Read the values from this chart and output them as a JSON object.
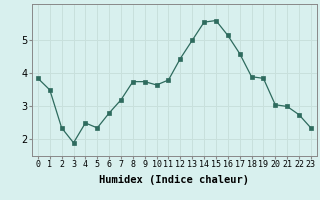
{
  "x": [
    0,
    1,
    2,
    3,
    4,
    5,
    6,
    7,
    8,
    9,
    10,
    11,
    12,
    13,
    14,
    15,
    16,
    17,
    18,
    19,
    20,
    21,
    22,
    23
  ],
  "y": [
    3.85,
    3.5,
    2.35,
    1.9,
    2.5,
    2.35,
    2.8,
    3.2,
    3.75,
    3.75,
    3.65,
    3.8,
    4.45,
    5.0,
    5.55,
    5.6,
    5.15,
    4.6,
    3.9,
    3.85,
    3.05,
    3.0,
    2.75,
    2.35
  ],
  "line_color": "#2e6b5e",
  "marker": "s",
  "marker_size": 2.5,
  "xlabel": "Humidex (Indice chaleur)",
  "xlabel_fontsize": 7.5,
  "background_color": "#d8f0ee",
  "grid_color": "#c8e0dc",
  "ylim": [
    1.5,
    6.1
  ],
  "xlim": [
    -0.5,
    23.5
  ],
  "yticks": [
    2,
    3,
    4,
    5
  ],
  "xticks": [
    0,
    1,
    2,
    3,
    4,
    5,
    6,
    7,
    8,
    9,
    10,
    11,
    12,
    13,
    14,
    15,
    16,
    17,
    18,
    19,
    20,
    21,
    22,
    23
  ],
  "tick_fontsize": 6,
  "spine_color": "#888888"
}
